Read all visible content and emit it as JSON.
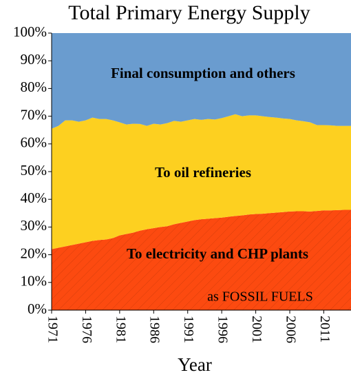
{
  "chart_data": {
    "type": "stacked_area",
    "title": "Total Primary Energy Supply",
    "x_label": "Year",
    "annotations": [
      "as FOSSIL FUELS"
    ],
    "x": [
      1971,
      1972,
      1973,
      1974,
      1975,
      1976,
      1977,
      1978,
      1979,
      1980,
      1981,
      1982,
      1983,
      1984,
      1985,
      1986,
      1987,
      1988,
      1989,
      1990,
      1991,
      1992,
      1993,
      1994,
      1995,
      1996,
      1997,
      1998,
      1999,
      2000,
      2001,
      2002,
      2003,
      2004,
      2005,
      2006,
      2007,
      2008,
      2009,
      2010,
      2011,
      2012,
      2013,
      2014,
      2015
    ],
    "xlim": [
      1971,
      2015
    ],
    "xticks": [
      1971,
      1976,
      1981,
      1986,
      1991,
      1996,
      2001,
      2006,
      2011
    ],
    "ylim": [
      0,
      100
    ],
    "yticks": [
      {
        "value": 0,
        "label": "0%"
      },
      {
        "value": 10,
        "label": "10%"
      },
      {
        "value": 20,
        "label": "20%"
      },
      {
        "value": 30,
        "label": "30%"
      },
      {
        "value": 40,
        "label": "40%"
      },
      {
        "value": 50,
        "label": "50%"
      },
      {
        "value": 60,
        "label": "60%"
      },
      {
        "value": 70,
        "label": "70%"
      },
      {
        "value": 80,
        "label": "80%"
      },
      {
        "value": 90,
        "label": "90%"
      },
      {
        "value": 100,
        "label": "100%"
      }
    ],
    "series": [
      {
        "name": "To electricity and CHP plants",
        "color": "#fc4a10",
        "hatch": true,
        "values": [
          22,
          22.5,
          23,
          23.5,
          24,
          24.5,
          25,
          25.3,
          25.5,
          26,
          27,
          27.5,
          28,
          28.7,
          29.2,
          29.6,
          30,
          30.3,
          31,
          31.5,
          32,
          32.5,
          32.8,
          33,
          33.2,
          33.4,
          33.7,
          34,
          34.2,
          34.5,
          34.7,
          34.8,
          35,
          35.2,
          35.4,
          35.6,
          35.7,
          35.7,
          35.6,
          35.8,
          36,
          36,
          36.1,
          36.2,
          36.2
        ]
      },
      {
        "name": "To oil refineries",
        "color": "#fdd020",
        "values": [
          43.5,
          44,
          45.5,
          45,
          44,
          44,
          44.5,
          43.7,
          43.5,
          42.5,
          40.8,
          39.5,
          39.3,
          38.5,
          37.3,
          37.7,
          37,
          37.2,
          37.3,
          36.5,
          36.5,
          36.5,
          35.9,
          36,
          35.6,
          35.9,
          36.3,
          36.7,
          35.8,
          35.8,
          35.6,
          35.2,
          34.7,
          34.3,
          33.8,
          33.4,
          32.8,
          32.5,
          32.2,
          31,
          30.8,
          30.7,
          30.4,
          30.3,
          30.3
        ]
      },
      {
        "name": "Final consumption and others",
        "color": "#6a9ccf",
        "values": [
          34.5,
          33.5,
          31.5,
          31.5,
          32,
          31.5,
          30.5,
          31,
          31,
          31.5,
          32.2,
          33,
          32.7,
          32.8,
          33.5,
          32.7,
          33,
          32.5,
          31.7,
          32,
          31.5,
          31,
          31.3,
          31,
          31.2,
          30.7,
          30,
          29.3,
          30,
          29.7,
          29.7,
          30,
          30.3,
          30.5,
          30.8,
          31,
          31.5,
          31.8,
          32.2,
          33.2,
          33.2,
          33.3,
          33.5,
          33.5,
          33.5
        ]
      }
    ]
  }
}
